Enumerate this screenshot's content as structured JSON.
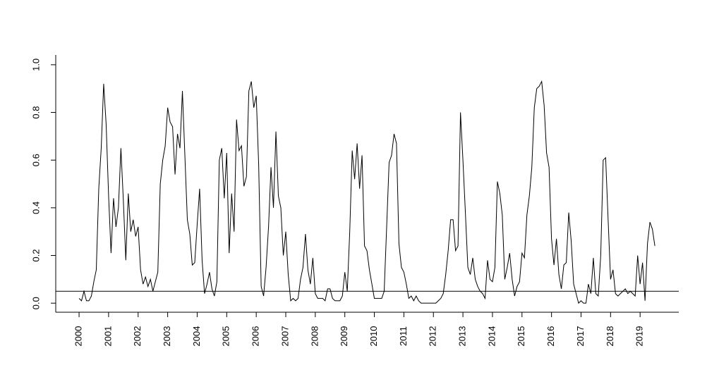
{
  "chart_data": {
    "type": "line",
    "x": [
      2000,
      2000.083,
      2000.167,
      2000.25,
      2000.333,
      2000.417,
      2000.5,
      2000.583,
      2000.667,
      2000.75,
      2000.833,
      2000.917,
      2001,
      2001.083,
      2001.167,
      2001.25,
      2001.333,
      2001.417,
      2001.5,
      2001.583,
      2001.667,
      2001.75,
      2001.833,
      2001.917,
      2002,
      2002.083,
      2002.167,
      2002.25,
      2002.333,
      2002.417,
      2002.5,
      2002.583,
      2002.667,
      2002.75,
      2002.833,
      2002.917,
      2003,
      2003.083,
      2003.167,
      2003.25,
      2003.333,
      2003.417,
      2003.5,
      2003.583,
      2003.667,
      2003.75,
      2003.833,
      2003.917,
      2004,
      2004.083,
      2004.167,
      2004.25,
      2004.333,
      2004.417,
      2004.5,
      2004.583,
      2004.667,
      2004.75,
      2004.833,
      2004.917,
      2005,
      2005.083,
      2005.167,
      2005.25,
      2005.333,
      2005.417,
      2005.5,
      2005.583,
      2005.667,
      2005.75,
      2005.833,
      2005.917,
      2006,
      2006.083,
      2006.167,
      2006.25,
      2006.333,
      2006.417,
      2006.5,
      2006.583,
      2006.667,
      2006.75,
      2006.833,
      2006.917,
      2007,
      2007.083,
      2007.167,
      2007.25,
      2007.333,
      2007.417,
      2007.5,
      2007.583,
      2007.667,
      2007.75,
      2007.833,
      2007.917,
      2008,
      2008.083,
      2008.167,
      2008.25,
      2008.333,
      2008.417,
      2008.5,
      2008.583,
      2008.667,
      2008.75,
      2008.833,
      2008.917,
      2009,
      2009.083,
      2009.167,
      2009.25,
      2009.333,
      2009.417,
      2009.5,
      2009.583,
      2009.667,
      2009.75,
      2009.833,
      2009.917,
      2010,
      2010.083,
      2010.167,
      2010.25,
      2010.333,
      2010.417,
      2010.5,
      2010.583,
      2010.667,
      2010.75,
      2010.833,
      2010.917,
      2011,
      2011.083,
      2011.167,
      2011.25,
      2011.333,
      2011.417,
      2011.5,
      2011.583,
      2011.667,
      2011.75,
      2011.833,
      2011.917,
      2012,
      2012.083,
      2012.167,
      2012.25,
      2012.333,
      2012.417,
      2012.5,
      2012.583,
      2012.667,
      2012.75,
      2012.833,
      2012.917,
      2013,
      2013.083,
      2013.167,
      2013.25,
      2013.333,
      2013.417,
      2013.5,
      2013.583,
      2013.667,
      2013.75,
      2013.833,
      2013.917,
      2014,
      2014.083,
      2014.167,
      2014.25,
      2014.333,
      2014.417,
      2014.5,
      2014.583,
      2014.667,
      2014.75,
      2014.833,
      2014.917,
      2015,
      2015.083,
      2015.167,
      2015.25,
      2015.333,
      2015.417,
      2015.5,
      2015.583,
      2015.667,
      2015.75,
      2015.833,
      2015.917,
      2016,
      2016.083,
      2016.167,
      2016.25,
      2016.333,
      2016.417,
      2016.5,
      2016.583,
      2016.667,
      2016.75,
      2016.833,
      2016.917,
      2017,
      2017.083,
      2017.167,
      2017.25,
      2017.333,
      2017.417,
      2017.5,
      2017.583,
      2017.667,
      2017.75,
      2017.833,
      2017.917,
      2018,
      2018.083,
      2018.167,
      2018.25,
      2018.333,
      2018.417,
      2018.5,
      2018.583,
      2018.667,
      2018.75,
      2018.833,
      2018.917,
      2019,
      2019.083,
      2019.167,
      2019.25,
      2019.333,
      2019.417,
      2019.5
    ],
    "values": [
      0.02,
      0.01,
      0.05,
      0.01,
      0.01,
      0.03,
      0.09,
      0.14,
      0.48,
      0.65,
      0.92,
      0.75,
      0.45,
      0.21,
      0.44,
      0.32,
      0.4,
      0.65,
      0.43,
      0.18,
      0.46,
      0.3,
      0.35,
      0.28,
      0.32,
      0.14,
      0.08,
      0.11,
      0.07,
      0.1,
      0.05,
      0.09,
      0.13,
      0.5,
      0.6,
      0.66,
      0.82,
      0.76,
      0.74,
      0.54,
      0.71,
      0.65,
      0.89,
      0.62,
      0.35,
      0.29,
      0.16,
      0.17,
      0.33,
      0.48,
      0.18,
      0.04,
      0.08,
      0.13,
      0.06,
      0.03,
      0.09,
      0.6,
      0.65,
      0.44,
      0.63,
      0.21,
      0.46,
      0.3,
      0.77,
      0.64,
      0.66,
      0.49,
      0.53,
      0.89,
      0.93,
      0.82,
      0.87,
      0.58,
      0.07,
      0.03,
      0.15,
      0.32,
      0.57,
      0.4,
      0.72,
      0.45,
      0.4,
      0.2,
      0.3,
      0.12,
      0.01,
      0.02,
      0.01,
      0.02,
      0.1,
      0.15,
      0.29,
      0.14,
      0.08,
      0.19,
      0.04,
      0.02,
      0.02,
      0.02,
      0.01,
      0.06,
      0.06,
      0.02,
      0.01,
      0.01,
      0.01,
      0.03,
      0.13,
      0.05,
      0.3,
      0.64,
      0.52,
      0.67,
      0.48,
      0.62,
      0.24,
      0.22,
      0.14,
      0.08,
      0.02,
      0.02,
      0.02,
      0.02,
      0.05,
      0.32,
      0.59,
      0.62,
      0.71,
      0.67,
      0.25,
      0.15,
      0.13,
      0.08,
      0.02,
      0.03,
      0.01,
      0.03,
      0.01,
      0,
      0,
      0,
      0,
      0,
      0,
      0,
      0.01,
      0.02,
      0.04,
      0.12,
      0.22,
      0.35,
      0.35,
      0.22,
      0.24,
      0.8,
      0.6,
      0.38,
      0.15,
      0.12,
      0.19,
      0.1,
      0.07,
      0.05,
      0.04,
      0.02,
      0.18,
      0.1,
      0.09,
      0.15,
      0.51,
      0.46,
      0.37,
      0.1,
      0.15,
      0.21,
      0.1,
      0.03,
      0.07,
      0.09,
      0.21,
      0.19,
      0.37,
      0.45,
      0.57,
      0.82,
      0.9,
      0.91,
      0.93,
      0.83,
      0.63,
      0.57,
      0.27,
      0.16,
      0.27,
      0.12,
      0.06,
      0.16,
      0.17,
      0.38,
      0.26,
      0.08,
      0.04,
      0,
      0.01,
      0,
      0,
      0.08,
      0.04,
      0.19,
      0.04,
      0.03,
      0.2,
      0.6,
      0.61,
      0.35,
      0.1,
      0.14,
      0.04,
      0.03,
      0.04,
      0.05,
      0.06,
      0.04,
      0.05,
      0.04,
      0.03,
      0.2,
      0.08,
      0.17,
      0.01,
      0.25,
      0.34,
      0.31,
      0.24
    ],
    "color": "#000000",
    "hline": 0.05,
    "xlim": [
      1999.21,
      2020.31
    ],
    "xticks": [
      2000,
      2001,
      2002,
      2003,
      2004,
      2005,
      2006,
      2007,
      2008,
      2009,
      2010,
      2011,
      2012,
      2013,
      2014,
      2015,
      2016,
      2017,
      2018,
      2019
    ],
    "ylim": [
      -0.038,
      1.041
    ],
    "yticks": [
      {
        "value": 0,
        "label": "0.0"
      },
      0.2,
      0.4,
      0.6,
      0.8,
      {
        "value": 1,
        "label": "1.0"
      }
    ]
  }
}
